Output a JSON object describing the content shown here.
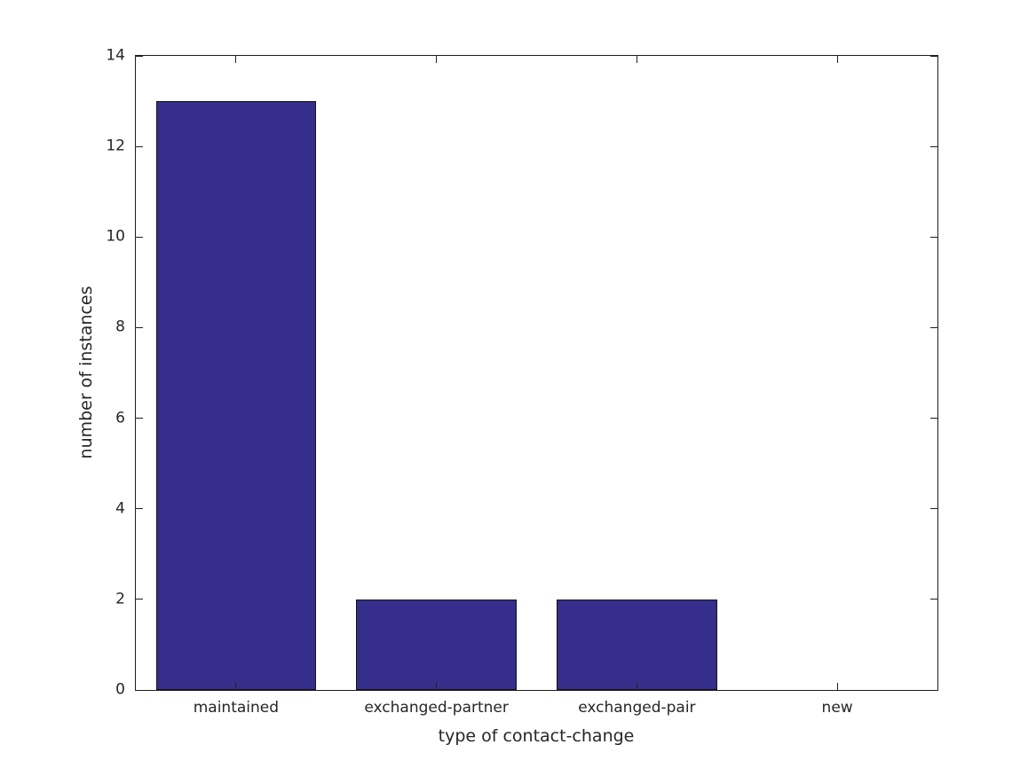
{
  "chart_data": {
    "type": "bar",
    "title": "",
    "categories": [
      "maintained",
      "exchanged-partner",
      "exchanged-pair",
      "new"
    ],
    "values": [
      13,
      2,
      2,
      0
    ],
    "xlabel": "type of contact-change",
    "ylabel": "number of instances",
    "ylim": [
      0,
      14
    ],
    "yticks": [
      0,
      2,
      4,
      6,
      8,
      10,
      12,
      14
    ],
    "bar_width_fraction": 0.8,
    "bar_color": "#352E8A",
    "bar_edge_color": "#141414",
    "axis_color": "#1f1f1f",
    "text_color": "#262626",
    "background_color": "#ffffff",
    "grid": false,
    "legend": "none",
    "tick_direction": "in",
    "ticks_on_all_sides": true,
    "box": true
  }
}
